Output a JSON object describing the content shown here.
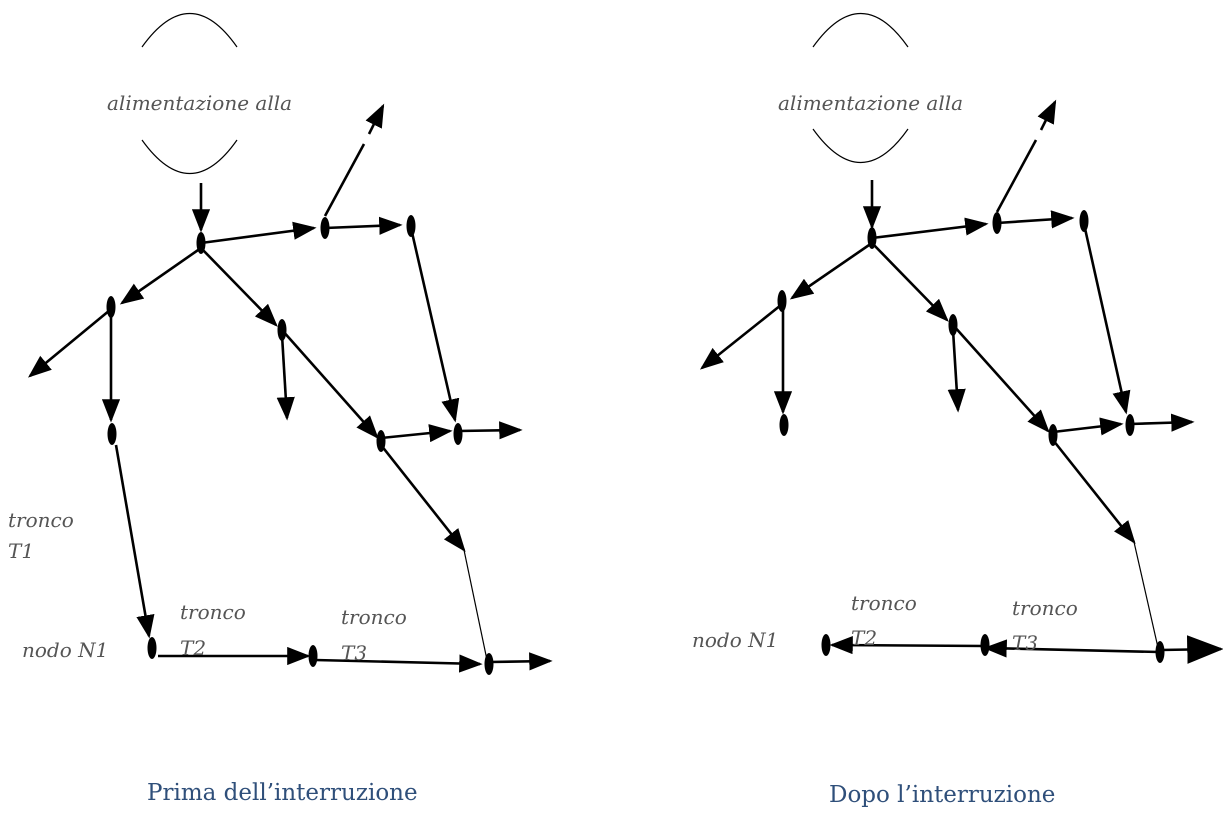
{
  "panels": [
    {
      "id": "before",
      "caption": "Prima dell’interruzione",
      "source_label": "alimentazione alla",
      "trunk_labels": [
        {
          "id": "t1-a",
          "text": "tronco"
        },
        {
          "id": "t1-b",
          "text": "T1"
        },
        {
          "id": "t2-a",
          "text": "tronco"
        },
        {
          "id": "t2-b",
          "text": "T2"
        },
        {
          "id": "t3-a",
          "text": "tronco"
        },
        {
          "id": "t3-b",
          "text": "T3"
        }
      ],
      "node_label": "nodo N1"
    },
    {
      "id": "after",
      "caption": "Dopo l’interruzione",
      "source_label": "alimentazione alla",
      "trunk_labels": [
        {
          "id": "t2-a",
          "text": "tronco"
        },
        {
          "id": "t2-b",
          "text": "T2"
        },
        {
          "id": "t3-a",
          "text": "tronco"
        },
        {
          "id": "t3-b",
          "text": "T3"
        }
      ],
      "node_label": "nodo N1"
    }
  ]
}
